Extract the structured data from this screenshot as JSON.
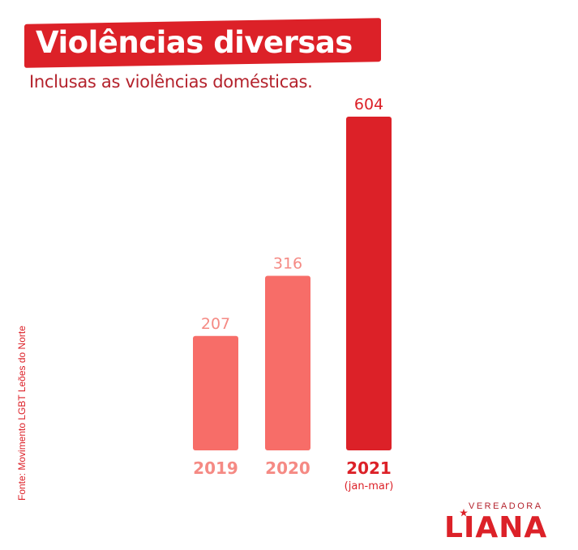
{
  "header": {
    "title": "Violências diversas",
    "subtitle": "Inclusas as violências domésticas."
  },
  "source": "Fonte: Movimento LGBT Leões do Norte",
  "logo": {
    "sub": "VEREADORA",
    "name": "LIANA"
  },
  "colors": {
    "brand_red": "#dc2128",
    "light_bar": "#f76d68",
    "label_light": "#f58a84",
    "label_dark": "#dc2128"
  },
  "chart_data": {
    "type": "bar",
    "title": "Violências diversas",
    "subtitle": "Inclusas as violências domésticas.",
    "categories": [
      "2019",
      "2020",
      "2021"
    ],
    "category_notes": [
      "",
      "",
      "(jan-mar)"
    ],
    "values": [
      207,
      316,
      604
    ],
    "value_labels": [
      "207",
      "316",
      "604"
    ],
    "bar_colors": [
      "#f76d68",
      "#f76d68",
      "#dc2128"
    ],
    "label_colors": [
      "#f58a84",
      "#f58a84",
      "#dc2128"
    ],
    "xlabel": "",
    "ylabel": "",
    "ylim": [
      0,
      604
    ],
    "grid": false,
    "legend": "none"
  }
}
